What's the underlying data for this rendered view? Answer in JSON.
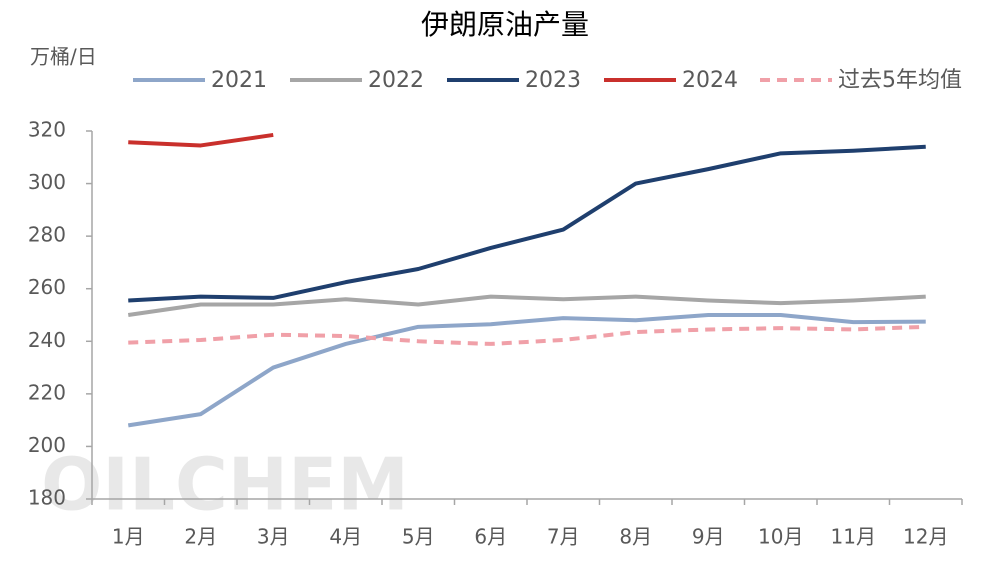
{
  "chart_data": {
    "type": "line",
    "title": "伊朗原油产量",
    "y_label": "万桶/日",
    "watermark": "OILCHEM",
    "categories": [
      "1月",
      "2月",
      "3月",
      "4月",
      "5月",
      "6月",
      "7月",
      "8月",
      "9月",
      "10月",
      "11月",
      "12月"
    ],
    "series": [
      {
        "name": "2021",
        "color": "#8ea6c9",
        "dashed": false,
        "values": [
          208,
          212.3,
          230,
          239,
          245.5,
          246.5,
          248.8,
          248,
          250,
          250,
          247.3,
          247.5
        ]
      },
      {
        "name": "2022",
        "color": "#a6a6a6",
        "dashed": false,
        "values": [
          250,
          254,
          254,
          256,
          254,
          257,
          256,
          257,
          255.5,
          254.5,
          255.5,
          257
        ]
      },
      {
        "name": "2023",
        "color": "#1f3f6e",
        "dashed": false,
        "values": [
          255.5,
          257,
          256.5,
          262.5,
          267.5,
          275.5,
          282.5,
          300,
          305.5,
          311.5,
          312.5,
          314
        ]
      },
      {
        "name": "2024",
        "color": "#c9302c",
        "dashed": false,
        "values": [
          315.7,
          314.5,
          318.5,
          null,
          null,
          null,
          null,
          null,
          null,
          null,
          null,
          null
        ]
      },
      {
        "name": "过去5年均值",
        "color": "#f0a0a8",
        "dashed": true,
        "values": [
          239.5,
          240.5,
          242.5,
          242,
          240,
          239,
          240.5,
          243.5,
          244.5,
          245,
          244.5,
          245.5
        ]
      }
    ],
    "ylim": [
      180,
      320
    ],
    "yticks": [
      180,
      200,
      220,
      240,
      260,
      280,
      300,
      320
    ],
    "grid": false,
    "legend": "top"
  }
}
